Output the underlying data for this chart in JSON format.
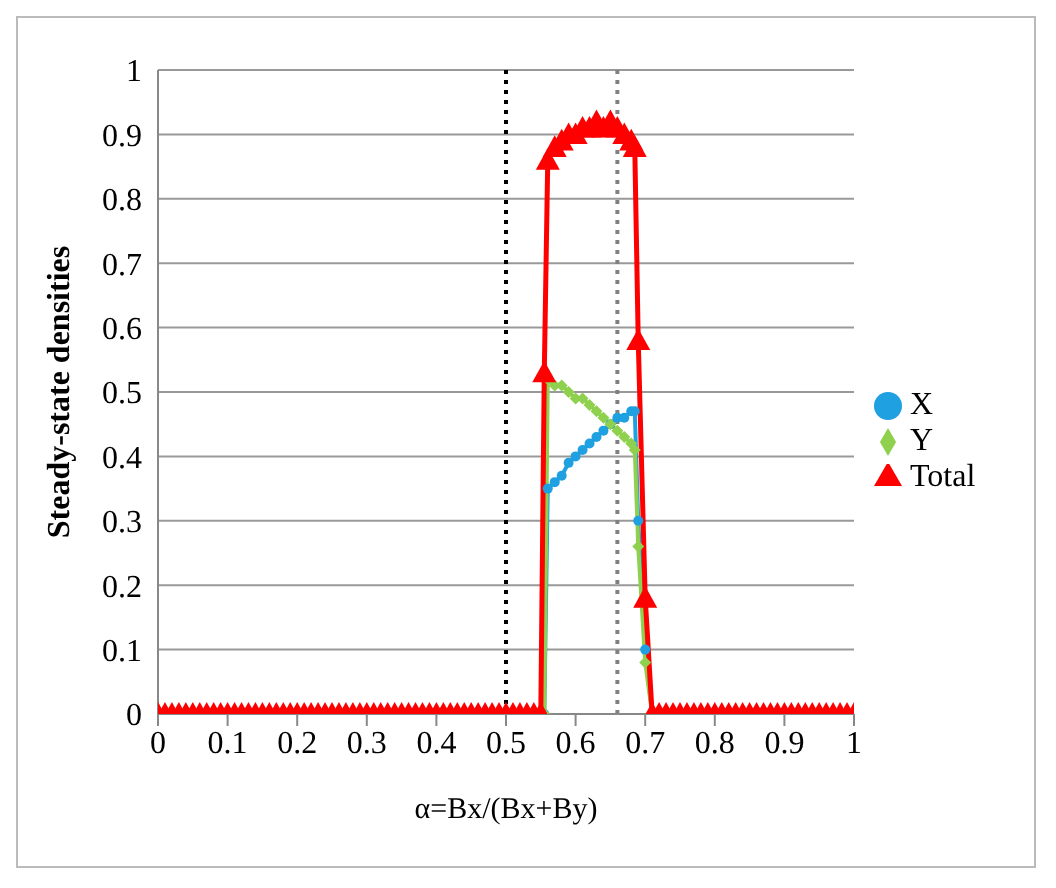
{
  "chart_data": {
    "type": "line",
    "xlabel": "α=Bx/(Bx+By)",
    "ylabel": "Steady-state densities",
    "x": [
      0,
      0.01,
      0.02,
      0.03,
      0.04,
      0.05,
      0.06,
      0.07,
      0.08,
      0.09,
      0.1,
      0.11,
      0.12,
      0.13,
      0.14,
      0.15,
      0.16,
      0.17,
      0.18,
      0.19,
      0.2,
      0.21,
      0.22,
      0.23,
      0.24,
      0.25,
      0.26,
      0.27,
      0.28,
      0.29,
      0.3,
      0.31,
      0.32,
      0.33,
      0.34,
      0.35,
      0.36,
      0.37,
      0.38,
      0.39,
      0.4,
      0.41,
      0.42,
      0.43,
      0.44,
      0.45,
      0.46,
      0.47,
      0.48,
      0.49,
      0.5,
      0.51,
      0.52,
      0.53,
      0.54,
      0.55,
      0.555,
      0.56,
      0.57,
      0.58,
      0.59,
      0.6,
      0.61,
      0.62,
      0.63,
      0.64,
      0.65,
      0.66,
      0.67,
      0.68,
      0.685,
      0.69,
      0.7,
      0.71,
      0.72,
      0.73,
      0.74,
      0.75,
      0.76,
      0.77,
      0.78,
      0.79,
      0.8,
      0.81,
      0.82,
      0.83,
      0.84,
      0.85,
      0.86,
      0.87,
      0.88,
      0.89,
      0.9,
      0.91,
      0.92,
      0.93,
      0.94,
      0.95,
      0.96,
      0.97,
      0.98,
      0.99,
      1
    ],
    "series": [
      {
        "name": "X",
        "color": "#1fa0e0",
        "marker": "circle",
        "values": [
          null,
          null,
          null,
          null,
          null,
          null,
          null,
          null,
          null,
          null,
          null,
          null,
          null,
          null,
          null,
          null,
          null,
          null,
          null,
          null,
          null,
          null,
          null,
          null,
          null,
          null,
          null,
          null,
          null,
          null,
          null,
          null,
          null,
          null,
          null,
          null,
          null,
          null,
          null,
          null,
          null,
          null,
          null,
          null,
          null,
          null,
          null,
          null,
          null,
          null,
          null,
          null,
          null,
          null,
          null,
          null,
          0,
          0.35,
          0.36,
          0.37,
          0.39,
          0.4,
          0.41,
          0.42,
          0.43,
          0.44,
          0.45,
          0.46,
          0.46,
          0.47,
          0.47,
          0.3,
          0.1,
          0,
          null,
          null,
          null,
          null,
          null,
          null,
          null,
          null,
          null,
          null,
          null,
          null,
          null,
          null,
          null,
          null,
          null,
          null,
          null,
          null,
          null,
          null,
          null,
          null,
          null,
          null,
          null,
          null,
          null
        ]
      },
      {
        "name": "Y",
        "color": "#8fd14f",
        "marker": "diamond",
        "values": [
          null,
          null,
          null,
          null,
          null,
          null,
          null,
          null,
          null,
          null,
          null,
          null,
          null,
          null,
          null,
          null,
          null,
          null,
          null,
          null,
          null,
          null,
          null,
          null,
          null,
          null,
          null,
          null,
          null,
          null,
          null,
          null,
          null,
          null,
          null,
          null,
          null,
          null,
          null,
          null,
          null,
          null,
          null,
          null,
          null,
          null,
          null,
          null,
          null,
          null,
          null,
          null,
          null,
          null,
          null,
          null,
          0,
          0.52,
          0.51,
          0.51,
          0.5,
          0.49,
          0.49,
          0.48,
          0.47,
          0.46,
          0.45,
          0.44,
          0.43,
          0.42,
          0.41,
          0.26,
          0.08,
          0,
          null,
          null,
          null,
          null,
          null,
          null,
          null,
          null,
          null,
          null,
          null,
          null,
          null,
          null,
          null,
          null,
          null,
          null,
          null,
          null,
          null,
          null,
          null,
          null,
          null,
          null,
          null,
          null,
          null
        ]
      },
      {
        "name": "Total",
        "color": "#ff0000",
        "marker": "triangle",
        "values": [
          0,
          0,
          0,
          0,
          0,
          0,
          0,
          0,
          0,
          0,
          0,
          0,
          0,
          0,
          0,
          0,
          0,
          0,
          0,
          0,
          0,
          0,
          0,
          0,
          0,
          0,
          0,
          0,
          0,
          0,
          0,
          0,
          0,
          0,
          0,
          0,
          0,
          0,
          0,
          0,
          0,
          0,
          0,
          0,
          0,
          0,
          0,
          0,
          0,
          0,
          0,
          0,
          0,
          0,
          0,
          0,
          0.53,
          0.86,
          0.88,
          0.89,
          0.9,
          0.9,
          0.91,
          0.91,
          0.92,
          0.91,
          0.92,
          0.91,
          0.9,
          0.89,
          0.88,
          0.58,
          0.18,
          0,
          0,
          0,
          0,
          0,
          0,
          0,
          0,
          0,
          0,
          0,
          0,
          0,
          0,
          0,
          0,
          0,
          0,
          0,
          0,
          0,
          0,
          0,
          0,
          0,
          0,
          0,
          0,
          0,
          0
        ]
      }
    ],
    "xlim": [
      0,
      1
    ],
    "xticks": [
      0,
      0.1,
      0.2,
      0.3,
      0.4,
      0.5,
      0.6,
      0.7,
      0.8,
      0.9,
      1
    ],
    "ylim": [
      0,
      1
    ],
    "yticks": [
      0,
      0.1,
      0.2,
      0.3,
      0.4,
      0.5,
      0.6,
      0.7,
      0.8,
      0.9,
      1
    ],
    "grid": "y",
    "legend": "right",
    "ref_lines": [
      {
        "axis": "x",
        "value": 0.5,
        "color": "#000000",
        "line_style": "dotted"
      },
      {
        "axis": "x",
        "value": 0.66,
        "color": "#808080",
        "line_style": "dotted"
      }
    ]
  }
}
